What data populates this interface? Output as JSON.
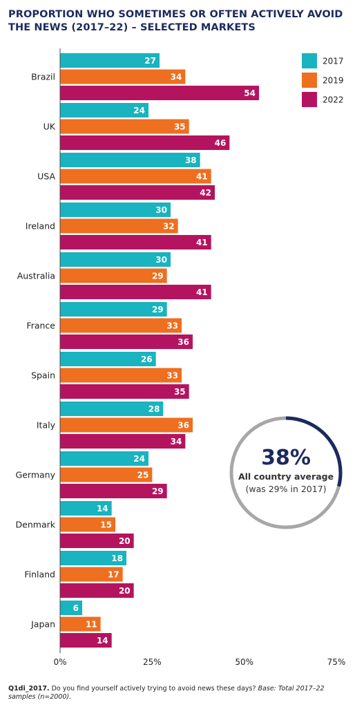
{
  "title": "PROPORTION WHO SOMETIMES OR OFTEN ACTIVELY AVOID THE NEWS (2017–22) – SELECTED MARKETS",
  "chart_data": {
    "type": "bar",
    "orientation": "horizontal",
    "categories": [
      "Brazil",
      "UK",
      "USA",
      "Ireland",
      "Australia",
      "France",
      "Spain",
      "Italy",
      "Germany",
      "Denmark",
      "Finland",
      "Japan"
    ],
    "series": [
      {
        "name": "2017",
        "color": "#1ab3c0",
        "values": [
          27,
          24,
          38,
          30,
          30,
          29,
          26,
          28,
          24,
          14,
          18,
          6
        ]
      },
      {
        "name": "2019",
        "color": "#ee6f1f",
        "values": [
          34,
          35,
          41,
          32,
          29,
          33,
          33,
          36,
          25,
          15,
          17,
          11
        ]
      },
      {
        "name": "2022",
        "color": "#b4145f",
        "values": [
          54,
          46,
          42,
          41,
          41,
          36,
          35,
          34,
          29,
          20,
          20,
          14
        ]
      }
    ],
    "xlim": [
      0,
      75
    ],
    "x_ticks": [
      0,
      25,
      50,
      75
    ],
    "x_tick_labels": [
      "0%",
      "25%",
      "50%",
      "75%"
    ],
    "legend_position": "top-right",
    "grid": false
  },
  "callout": {
    "value": "38%",
    "label": "All country average",
    "sublabel": "(was 29% in 2017)",
    "fraction": 0.29,
    "ring_color": "#1b2a5e",
    "track_color": "#a7a7a7"
  },
  "footnote": {
    "code": "Q1di_2017.",
    "question": " Do you find yourself actively trying to avoid news these days? ",
    "base_label": "Base:",
    "base_text": " Total 2017–22 samples (n=2000)."
  }
}
